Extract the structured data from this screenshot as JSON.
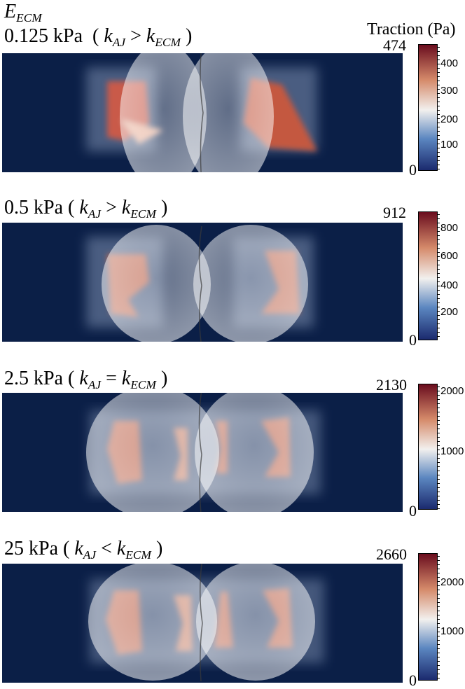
{
  "header": {
    "ecm_symbol": "E",
    "ecm_sub": "ECM",
    "colorbar_title": "Traction (Pa)"
  },
  "panels": [
    {
      "stiffness": "0.125 kPa",
      "k_left": "k",
      "k_left_sub": "AJ",
      "relation": ">",
      "k_right": "k",
      "k_right_sub": "ECM",
      "colorbar": {
        "max_label": "474",
        "min_label": "0",
        "ticks": [
          "300",
          "200",
          "100"
        ],
        "top_tick": "400"
      }
    },
    {
      "stiffness": "0.5   kPa",
      "k_left": "k",
      "k_left_sub": "AJ",
      "relation": ">",
      "k_right": "k",
      "k_right_sub": "ECM",
      "colorbar": {
        "max_label": "912",
        "min_label": "0",
        "ticks": [
          "600",
          "400",
          "200"
        ],
        "top_tick": "800"
      }
    },
    {
      "stiffness": "2.5   kPa",
      "k_left": "k",
      "k_left_sub": "AJ",
      "relation": "=",
      "k_right": "k",
      "k_right_sub": "ECM",
      "colorbar": {
        "max_label": "2130",
        "min_label": "0",
        "ticks": [
          "1000"
        ],
        "top_tick": "2000"
      }
    },
    {
      "stiffness": "25    kPa",
      "k_left": "k",
      "k_left_sub": "AJ",
      "relation": "<",
      "k_right": "k",
      "k_right_sub": "ECM",
      "colorbar": {
        "max_label": "2660",
        "min_label": "0",
        "ticks": [
          "1000"
        ],
        "top_tick": "2000"
      }
    }
  ],
  "colors": {
    "background": "#0b1f47",
    "high": "#6a0d1e",
    "mid": "#f2f0ee",
    "low": "#1a2a6b"
  }
}
